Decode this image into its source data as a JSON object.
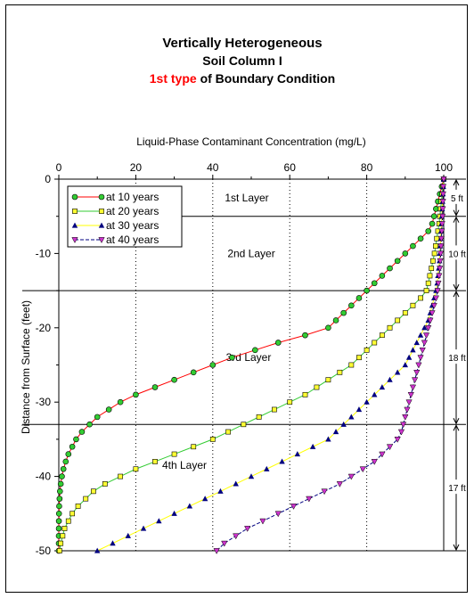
{
  "titles": {
    "line1": "Vertically Heterogeneous",
    "line2": "Soil Column I",
    "line3_red": "1st type",
    "line3_rest": " of Boundary Condition"
  },
  "colors": {
    "at_10_years": "#ff0000",
    "at_10_years_marker": "#33cc33",
    "at_20_years": "#33cc33",
    "at_20_years_marker": "#ffff33",
    "at_30_years": "#ffff00",
    "at_30_years_marker": "#000080",
    "at_40_years": "#000080",
    "at_40_years_marker": "#cc33cc"
  },
  "chart_data": {
    "type": "line",
    "xlabel": "Liquid-Phase Contaminant Concentration (mg/L)",
    "ylabel": "Distance from Surface (feet)",
    "xlim": [
      0,
      100
    ],
    "ylim": [
      -50,
      0
    ],
    "x_ticks": [
      "0",
      "20",
      "40",
      "60",
      "80",
      "100"
    ],
    "y_ticks": [
      "0",
      "-10",
      "-20",
      "-30",
      "-40",
      "-50"
    ],
    "x_axis_position": "top",
    "grid": "dotted vertical lines at 20, 40, 60, 80",
    "legend_position": "top-left",
    "layers": [
      {
        "label": "1st Layer",
        "top": 0,
        "bottom": -5,
        "thickness": "5 ft"
      },
      {
        "label": "2nd Layer",
        "top": -5,
        "bottom": -15,
        "thickness": "10 ft"
      },
      {
        "label": "3rd Layer",
        "top": -15,
        "bottom": -33,
        "thickness": "18 ft"
      },
      {
        "label": "4th Layer",
        "top": -33,
        "bottom": -50,
        "thickness": "17 ft"
      }
    ],
    "series": [
      {
        "name": "at 10 years",
        "marker": "circle",
        "x": [
          100,
          99.5,
          99,
          98.5,
          98,
          97.5,
          97,
          96,
          94,
          92,
          90,
          88,
          86,
          84,
          82,
          80,
          78,
          76,
          74,
          72,
          70,
          64,
          57,
          51,
          45,
          40,
          35,
          30,
          25,
          20,
          16,
          13,
          10,
          8,
          6,
          4.5,
          3.5,
          2.5,
          1.8,
          1.2,
          0.8,
          0.5,
          0.3,
          0.2,
          0.1,
          0.05,
          0.02,
          0.01,
          0,
          0,
          0
        ],
        "y": [
          0,
          -1,
          -2,
          -3,
          -4,
          -5,
          -6,
          -7,
          -8,
          -9,
          -10,
          -11,
          -12,
          -13,
          -14,
          -15,
          -16,
          -17,
          -18,
          -19,
          -20,
          -21,
          -22,
          -23,
          -24,
          -25,
          -26,
          -27,
          -28,
          -29,
          -30,
          -31,
          -32,
          -33,
          -34,
          -35,
          -36,
          -37,
          -38,
          -39,
          -40,
          -41,
          -42,
          -43,
          -44,
          -45,
          -46,
          -47,
          -48,
          -49,
          -50
        ]
      },
      {
        "name": "at 20 years",
        "marker": "square",
        "x": [
          100,
          99.8,
          99.6,
          99.4,
          99.2,
          99,
          98.8,
          98.5,
          98.2,
          97.9,
          97.6,
          97.2,
          96.8,
          96.4,
          96,
          95.5,
          94,
          92,
          90,
          88,
          86,
          84,
          82,
          80,
          78,
          76,
          73,
          70,
          67,
          64,
          60,
          56,
          52,
          48,
          44,
          40,
          35,
          30,
          25,
          20,
          16,
          12,
          9,
          7,
          5,
          3.5,
          2.5,
          1.5,
          1,
          0.5,
          0.2
        ],
        "y": [
          0,
          -1,
          -2,
          -3,
          -4,
          -5,
          -6,
          -7,
          -8,
          -9,
          -10,
          -11,
          -12,
          -13,
          -14,
          -15,
          -16,
          -17,
          -18,
          -19,
          -20,
          -21,
          -22,
          -23,
          -24,
          -25,
          -26,
          -27,
          -28,
          -29,
          -30,
          -31,
          -32,
          -33,
          -34,
          -35,
          -36,
          -37,
          -38,
          -39,
          -40,
          -41,
          -42,
          -43,
          -44,
          -45,
          -46,
          -47,
          -48,
          -49,
          -50
        ]
      },
      {
        "name": "at 30 years",
        "marker": "triangle-up",
        "x": [
          100,
          99.9,
          99.8,
          99.7,
          99.6,
          99.5,
          99.4,
          99.3,
          99.2,
          99.1,
          99,
          98.9,
          98.7,
          98.5,
          98.3,
          98,
          97.5,
          97,
          96.5,
          96,
          95,
          94,
          93,
          92,
          91,
          90,
          88,
          86,
          84,
          82,
          80,
          78,
          76,
          74,
          72,
          70,
          66,
          62,
          58,
          54,
          50,
          46,
          42,
          38,
          34,
          30,
          26,
          22,
          18,
          14,
          10
        ],
        "y": [
          0,
          -1,
          -2,
          -3,
          -4,
          -5,
          -6,
          -7,
          -8,
          -9,
          -10,
          -11,
          -12,
          -13,
          -14,
          -15,
          -16,
          -17,
          -18,
          -19,
          -20,
          -21,
          -22,
          -23,
          -24,
          -25,
          -26,
          -27,
          -28,
          -29,
          -30,
          -31,
          -32,
          -33,
          -34,
          -35,
          -36,
          -37,
          -38,
          -39,
          -40,
          -41,
          -42,
          -43,
          -44,
          -45,
          -46,
          -47,
          -48,
          -49,
          -50
        ]
      },
      {
        "name": "at 40 years",
        "marker": "triangle-down",
        "x": [
          100,
          99.9,
          99.85,
          99.8,
          99.75,
          99.7,
          99.6,
          99.5,
          99.4,
          99.3,
          99.2,
          99.1,
          99,
          98.8,
          98.6,
          98.4,
          98,
          97.5,
          97,
          96.5,
          96,
          95.5,
          95,
          94.5,
          94,
          93.5,
          93,
          92.5,
          92,
          91.5,
          91,
          90.5,
          90,
          89.5,
          89,
          88,
          86,
          84,
          82,
          79,
          76,
          73,
          69,
          65,
          61,
          57,
          53,
          49,
          46,
          43,
          41
        ],
        "y": [
          0,
          -1,
          -2,
          -3,
          -4,
          -5,
          -6,
          -7,
          -8,
          -9,
          -10,
          -11,
          -12,
          -13,
          -14,
          -15,
          -16,
          -17,
          -18,
          -19,
          -20,
          -21,
          -22,
          -23,
          -24,
          -25,
          -26,
          -27,
          -28,
          -29,
          -30,
          -31,
          -32,
          -33,
          -34,
          -35,
          -36,
          -37,
          -38,
          -39,
          -40,
          -41,
          -42,
          -43,
          -44,
          -45,
          -46,
          -47,
          -48,
          -49,
          -50
        ]
      }
    ]
  }
}
